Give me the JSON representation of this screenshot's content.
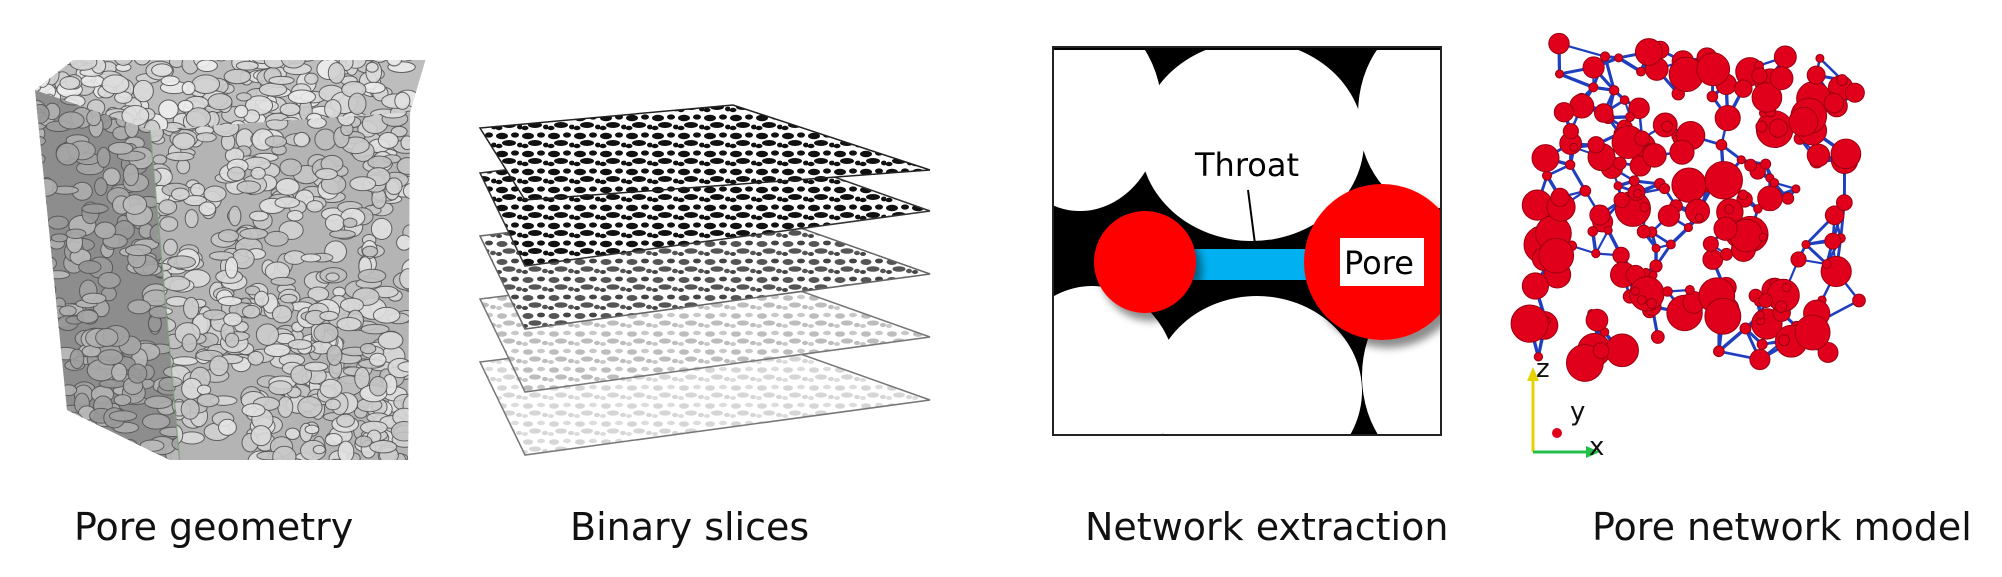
{
  "panels": [
    {
      "id": "pore-geometry",
      "caption": "Pore geometry"
    },
    {
      "id": "binary-slices",
      "caption": "Binary slices"
    },
    {
      "id": "network-extraction",
      "caption": "Network extraction"
    },
    {
      "id": "pore-network-model",
      "caption": "Pore network model"
    }
  ],
  "extraction": {
    "throat_label": "Throat",
    "pore_label": "Pore"
  },
  "axes": {
    "z": "z",
    "y": "y",
    "x": "x"
  },
  "colors": {
    "pore": "#ff0000",
    "network_pore": "#e0001c",
    "throat": "#00b0f0",
    "network_throat": "#1f3fbf",
    "axis_z": "#e6d200",
    "axis_x": "#22c04a"
  }
}
